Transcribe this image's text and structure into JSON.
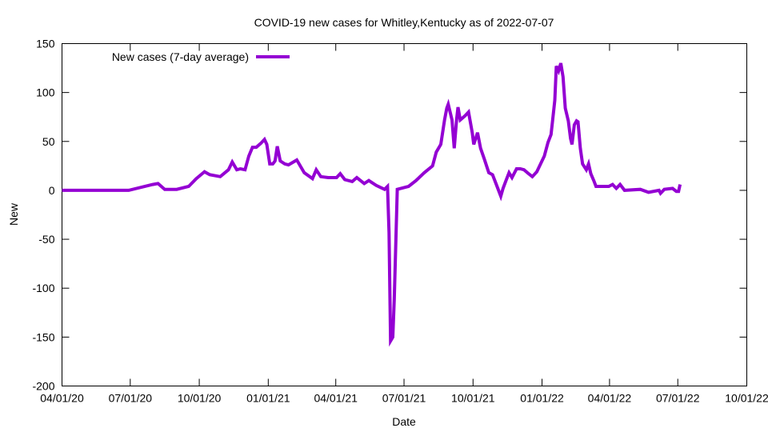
{
  "chart_data": {
    "type": "line",
    "title": "COVID-19 new cases for Whitley,Kentucky as of 2022-07-07",
    "xlabel": "Date",
    "ylabel": "New",
    "xlim": [
      "2020-04-01",
      "2022-10-01"
    ],
    "ylim": [
      -200,
      150
    ],
    "grid": false,
    "legend_position": "top-left",
    "x_tick_labels": [
      "04/01/20",
      "07/01/20",
      "10/01/20",
      "01/01/21",
      "04/01/21",
      "07/01/21",
      "10/01/21",
      "01/01/22",
      "04/01/22",
      "07/01/22",
      "10/01/22"
    ],
    "x_tick_dates": [
      "2020-04-01",
      "2020-07-01",
      "2020-10-01",
      "2021-01-01",
      "2021-04-01",
      "2021-07-01",
      "2021-10-01",
      "2022-01-01",
      "2022-04-01",
      "2022-07-01",
      "2022-10-01"
    ],
    "y_ticks": [
      -200,
      -150,
      -100,
      -50,
      0,
      50,
      100,
      150
    ],
    "series": [
      {
        "name": "New cases (7-day average)",
        "color": "#9400d3",
        "x": [
          "2020-04-01",
          "2020-06-29",
          "2020-07-31",
          "2020-08-07",
          "2020-08-16",
          "2020-09-01",
          "2020-09-17",
          "2020-09-27",
          "2020-10-08",
          "2020-10-15",
          "2020-10-29",
          "2020-11-09",
          "2020-11-14",
          "2020-11-20",
          "2020-11-25",
          "2020-12-01",
          "2020-12-06",
          "2020-12-11",
          "2020-12-16",
          "2020-12-22",
          "2020-12-27",
          "2020-12-30",
          "2021-01-03",
          "2021-01-07",
          "2021-01-10",
          "2021-01-13",
          "2021-01-17",
          "2021-01-23",
          "2021-01-28",
          "2021-02-08",
          "2021-02-18",
          "2021-03-01",
          "2021-03-06",
          "2021-03-12",
          "2021-03-22",
          "2021-04-02",
          "2021-04-07",
          "2021-04-13",
          "2021-04-23",
          "2021-04-29",
          "2021-05-09",
          "2021-05-15",
          "2021-05-25",
          "2021-06-05",
          "2021-06-09",
          "2021-06-11",
          "2021-06-13",
          "2021-06-16",
          "2021-06-18",
          "2021-06-22",
          "2021-07-07",
          "2021-07-17",
          "2021-07-28",
          "2021-08-08",
          "2021-08-13",
          "2021-08-19",
          "2021-08-24",
          "2021-08-27",
          "2021-08-29",
          "2021-09-03",
          "2021-09-06",
          "2021-09-09",
          "2021-09-11",
          "2021-09-14",
          "2021-09-20",
          "2021-09-25",
          "2021-09-30",
          "2021-10-02",
          "2021-10-07",
          "2021-10-11",
          "2021-10-16",
          "2021-10-22",
          "2021-10-27",
          "2021-11-01",
          "2021-11-07",
          "2021-11-10",
          "2021-11-14",
          "2021-11-18",
          "2021-11-22",
          "2021-11-28",
          "2021-12-03",
          "2021-12-08",
          "2021-12-14",
          "2021-12-19",
          "2021-12-25",
          "2022-01-04",
          "2022-01-09",
          "2022-01-13",
          "2022-01-15",
          "2022-01-18",
          "2022-01-20",
          "2022-01-23",
          "2022-01-26",
          "2022-01-29",
          "2022-02-01",
          "2022-02-05",
          "2022-02-08",
          "2022-02-10",
          "2022-02-13",
          "2022-02-16",
          "2022-02-18",
          "2022-02-21",
          "2022-02-24",
          "2022-03-01",
          "2022-03-04",
          "2022-03-07",
          "2022-03-11",
          "2022-03-14",
          "2022-03-31",
          "2022-04-05",
          "2022-04-10",
          "2022-04-15",
          "2022-04-21",
          "2022-05-12",
          "2022-05-23",
          "2022-06-06",
          "2022-06-08",
          "2022-06-13",
          "2022-06-24",
          "2022-06-29",
          "2022-07-02",
          "2022-07-04"
        ],
        "y": [
          0,
          0,
          6,
          7,
          1,
          1,
          4,
          12,
          19,
          16,
          14,
          21,
          29,
          21,
          22,
          21,
          35,
          44,
          44,
          48,
          52,
          47,
          27,
          27,
          30,
          45,
          30,
          27,
          26,
          31,
          18,
          12,
          21,
          14,
          13,
          13,
          17,
          11,
          9,
          13,
          7,
          10,
          5,
          1,
          4,
          -43,
          -154,
          -150,
          -112,
          1,
          4,
          10,
          18,
          25,
          39,
          47,
          72,
          84,
          88,
          72,
          43,
          72,
          85,
          72,
          76,
          80,
          59,
          47,
          59,
          43,
          32,
          18,
          16,
          6,
          -6,
          2,
          10,
          18,
          13,
          22,
          22,
          21,
          17,
          14,
          19,
          35,
          49,
          57,
          71,
          92,
          127,
          122,
          130,
          116,
          84,
          71,
          53,
          47,
          67,
          71,
          70,
          43,
          27,
          21,
          27,
          17,
          10,
          4,
          4,
          6,
          2,
          6,
          0,
          1,
          -2,
          0,
          -3,
          1,
          2,
          -1,
          -1,
          6
        ]
      }
    ]
  }
}
